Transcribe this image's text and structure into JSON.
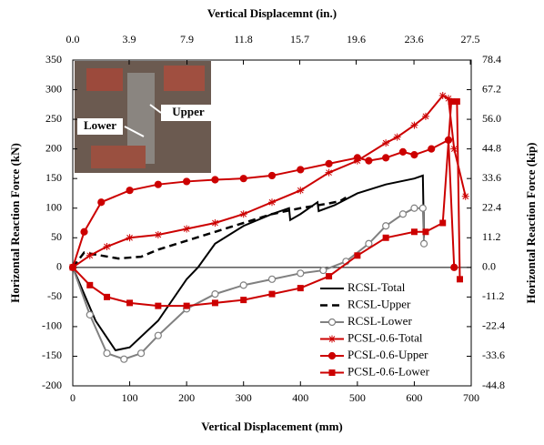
{
  "chart_data": {
    "type": "line",
    "xlabel": "Vertical Displacement (mm)",
    "x2label": "Vertical Displacemnt  (in.)",
    "ylabel": "Horizontal Reaction Force (kN)",
    "y2label": "Horizontal Reaction Force (kip)",
    "xlim": [
      0,
      700
    ],
    "xticks": [
      0,
      100,
      200,
      300,
      400,
      500,
      600,
      700
    ],
    "x2lim": [
      0,
      27.56
    ],
    "x2ticks": [
      {
        "value": 0,
        "label": "0.0"
      },
      3.9,
      7.9,
      11.8,
      15.7,
      19.6,
      23.6,
      27.5
    ],
    "ylim": [
      -200,
      350
    ],
    "yticks": [
      -200,
      -150,
      -100,
      -50,
      0,
      50,
      100,
      150,
      200,
      250,
      300,
      350
    ],
    "y2lim": [
      -44.8,
      78.4
    ],
    "y2ticks": [
      -44.8,
      -33.6,
      -22.4,
      -11.2,
      {
        "value": 0,
        "label": "0.0"
      },
      11.2,
      22.4,
      33.6,
      44.8,
      {
        "value": 56,
        "label": "56.0"
      },
      67.2,
      78.4
    ],
    "legend": "lower right",
    "annotations": [
      "Upper",
      "Lower"
    ],
    "series": [
      {
        "name": "RCSL-Total",
        "color": "#000000",
        "dash": "solid",
        "marker": "none",
        "x": [
          0,
          40,
          75,
          100,
          150,
          200,
          220,
          250,
          300,
          350,
          380,
          382,
          400,
          430,
          432,
          460,
          500,
          550,
          600,
          615,
          617
        ],
        "values": [
          0,
          -90,
          -140,
          -135,
          -90,
          -20,
          0,
          40,
          70,
          90,
          100,
          80,
          90,
          110,
          95,
          105,
          125,
          140,
          150,
          155,
          50
        ]
      },
      {
        "name": "RCSL-Upper",
        "color": "#000000",
        "dash": "dashed",
        "marker": "none",
        "x": [
          0,
          20,
          50,
          80,
          120,
          150,
          200,
          250,
          300,
          350,
          400,
          450,
          470,
          480
        ],
        "values": [
          0,
          25,
          20,
          15,
          18,
          30,
          45,
          60,
          75,
          90,
          100,
          108,
          112,
          118
        ]
      },
      {
        "name": "RCSL-Lower",
        "color": "#808080",
        "dash": "solid",
        "marker": "circle",
        "x": [
          0,
          30,
          60,
          90,
          120,
          150,
          200,
          250,
          300,
          350,
          400,
          440,
          480,
          520,
          550,
          580,
          600,
          615,
          617
        ],
        "values": [
          0,
          -80,
          -145,
          -155,
          -145,
          -115,
          -70,
          -45,
          -30,
          -20,
          -10,
          -5,
          10,
          40,
          70,
          90,
          100,
          100,
          40
        ]
      },
      {
        "name": "PCSL-0.6-Total",
        "color": "#cc0000",
        "dash": "solid",
        "marker": "star",
        "x": [
          0,
          30,
          60,
          100,
          150,
          200,
          250,
          300,
          350,
          400,
          450,
          500,
          550,
          570,
          600,
          620,
          650,
          660,
          670,
          690
        ],
        "values": [
          0,
          20,
          35,
          50,
          55,
          65,
          75,
          90,
          110,
          130,
          160,
          180,
          210,
          220,
          240,
          255,
          290,
          285,
          200,
          120
        ]
      },
      {
        "name": "PCSL-0.6-Upper",
        "color": "#cc0000",
        "dash": "solid",
        "marker": "circle",
        "x": [
          0,
          20,
          50,
          100,
          150,
          200,
          250,
          300,
          350,
          400,
          450,
          500,
          520,
          550,
          580,
          600,
          630,
          660,
          670
        ],
        "values": [
          0,
          60,
          110,
          130,
          140,
          145,
          148,
          150,
          155,
          165,
          175,
          185,
          180,
          185,
          195,
          190,
          200,
          215,
          0
        ]
      },
      {
        "name": "PCSL-0.6-Lower",
        "color": "#cc0000",
        "dash": "solid",
        "marker": "square",
        "x": [
          0,
          30,
          60,
          100,
          150,
          200,
          250,
          300,
          350,
          400,
          450,
          500,
          550,
          600,
          620,
          650,
          665,
          675,
          680
        ],
        "values": [
          0,
          -30,
          -50,
          -60,
          -65,
          -65,
          -60,
          -55,
          -45,
          -35,
          -15,
          20,
          50,
          60,
          60,
          75,
          280,
          280,
          -20
        ]
      }
    ]
  }
}
